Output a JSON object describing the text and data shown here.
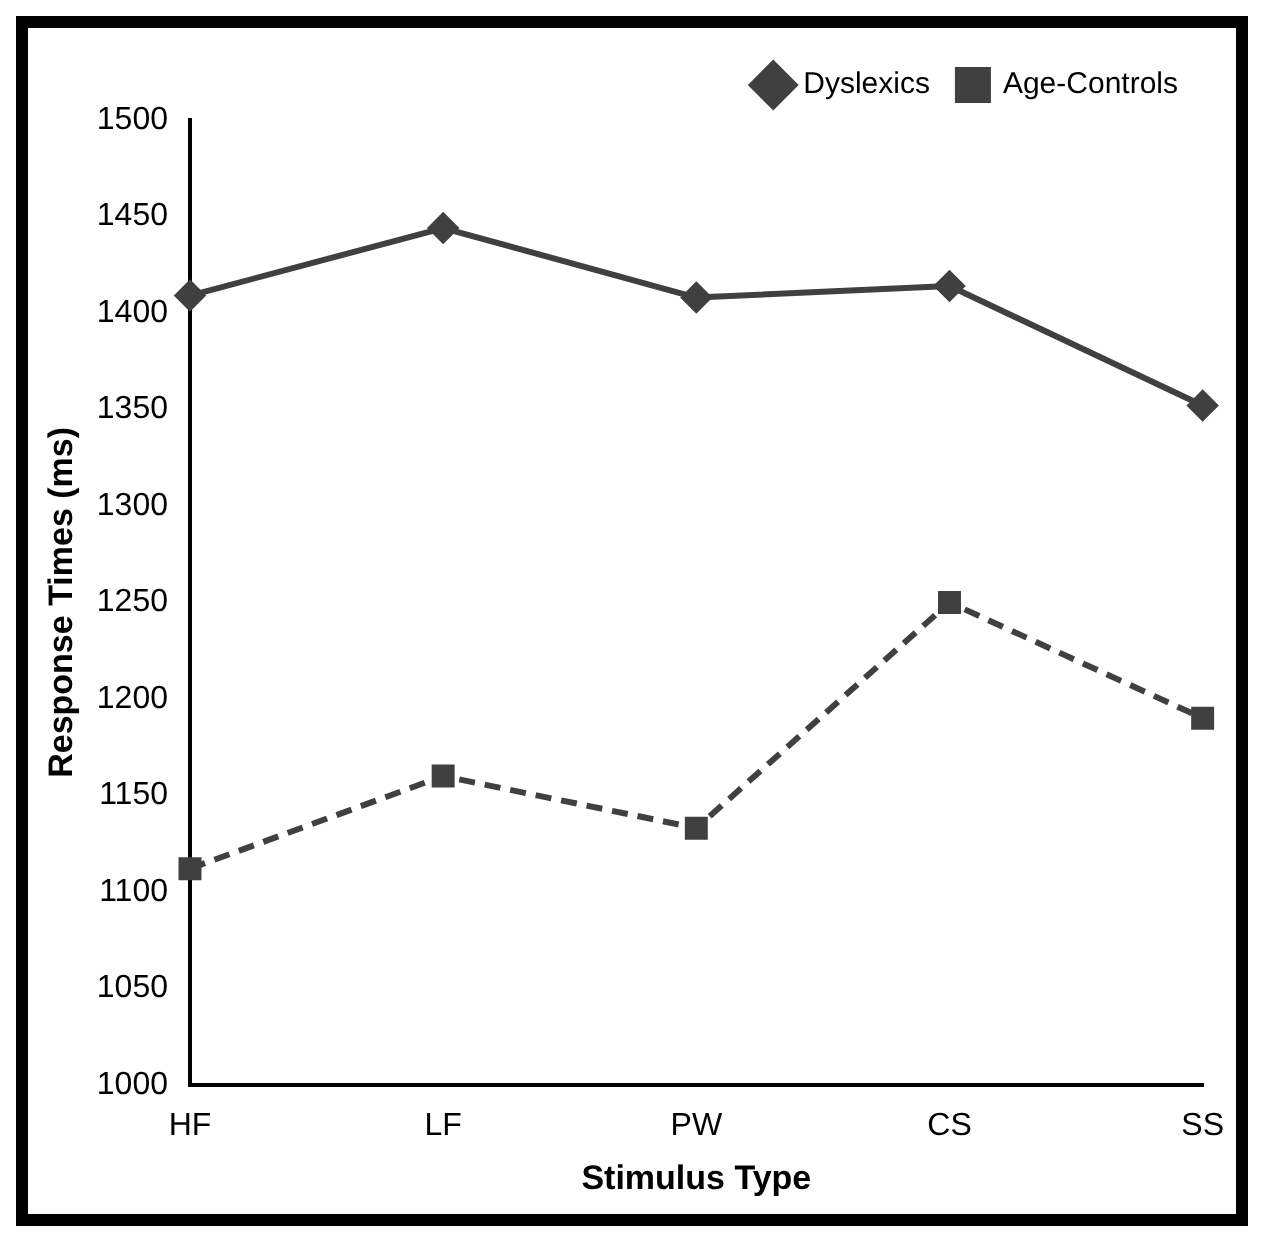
{
  "chart_data": {
    "type": "line",
    "xlabel": "Stimulus Type",
    "ylabel": "Response Times (ms)",
    "categories": [
      "HF",
      "LF",
      "PW",
      "CS",
      "SS"
    ],
    "series": [
      {
        "name": "Dyslexics",
        "color": "#404040",
        "values": [
          1409,
          1444,
          1408,
          1414,
          1352
        ],
        "marker": "diamond",
        "line_style": "solid"
      },
      {
        "name": "Age-Controls",
        "color": "#404040",
        "values": [
          1112,
          1160,
          1133,
          1250,
          1190
        ],
        "marker": "square",
        "line_style": "dashed"
      }
    ],
    "ylim": [
      1000,
      1500
    ],
    "yticks": [
      1000,
      1050,
      1100,
      1150,
      1200,
      1250,
      1300,
      1350,
      1400,
      1450,
      1500
    ],
    "grid": false,
    "legend": "top right"
  }
}
